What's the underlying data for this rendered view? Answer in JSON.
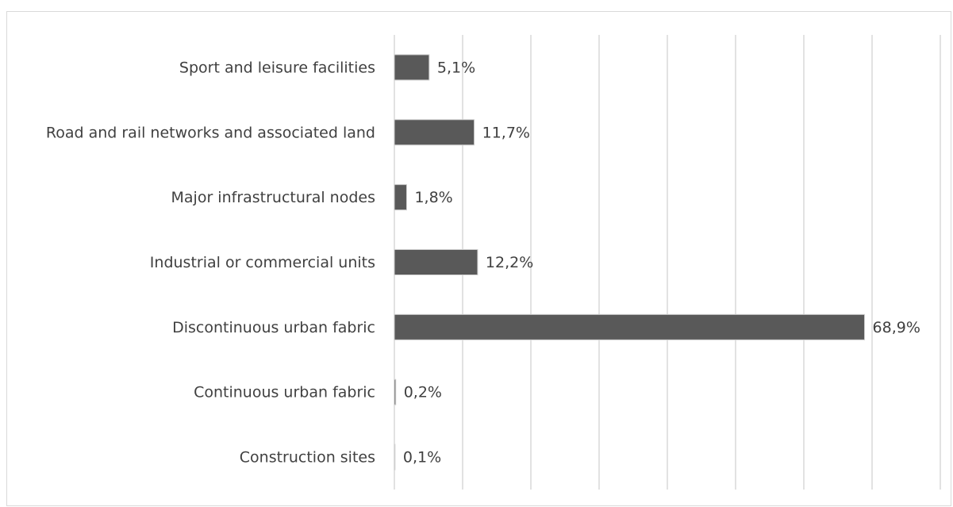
{
  "chart_data": {
    "type": "hbar",
    "categories": [
      "Sport and leisure facilities",
      "Road and rail networks and associated land",
      "Major infrastructural nodes",
      "Industrial or commercial units",
      "Discontinuous urban fabric",
      "Continuous urban fabric",
      "Construction sites"
    ],
    "values": [
      5.1,
      11.7,
      1.8,
      12.2,
      68.9,
      0.2,
      0.1
    ],
    "value_labels": [
      "5,1%",
      "11,7%",
      "1,8%",
      "12,2%",
      "68,9%",
      "0,2%",
      "0,1%"
    ],
    "color": "#595959",
    "xlim": [
      0,
      80
    ],
    "xticks": [
      0,
      10,
      20,
      30,
      40,
      50,
      60,
      70,
      80
    ],
    "grid": true
  }
}
